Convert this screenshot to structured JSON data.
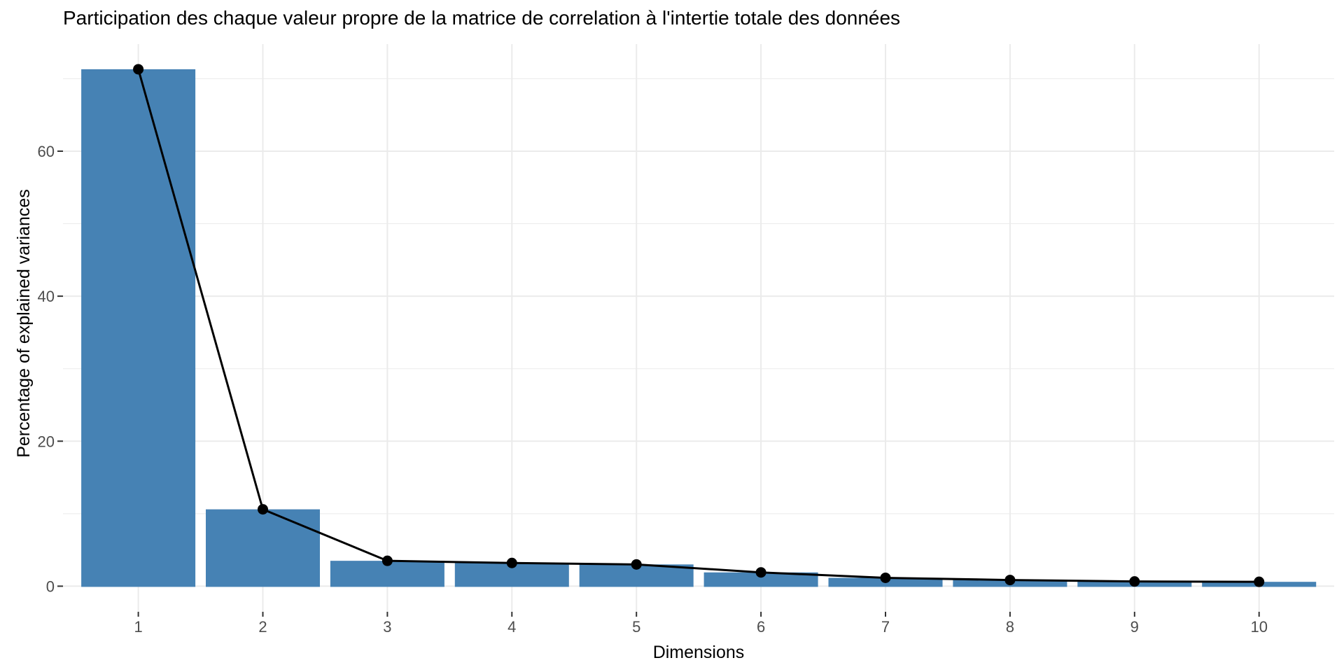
{
  "chart_data": {
    "type": "bar",
    "overlay": "line-with-points",
    "title": "Participation des chaque valeur propre de la matrice de correlation à l'intertie totale des données",
    "xlabel": "Dimensions",
    "ylabel": "Percentage of explained variances",
    "categories": [
      "1",
      "2",
      "3",
      "4",
      "5",
      "6",
      "7",
      "8",
      "9",
      "10"
    ],
    "values": [
      71.3,
      10.6,
      3.5,
      3.2,
      3.0,
      1.9,
      1.15,
      0.85,
      0.65,
      0.6
    ],
    "yticks": [
      0,
      20,
      40,
      60
    ],
    "y_minor_gridlines": [
      10,
      30,
      50,
      70
    ],
    "ylim": [
      0,
      74.8
    ],
    "grid": true,
    "legend_position": "none",
    "colors": {
      "bar_fill": "#4682B4",
      "line": "#000000",
      "point": "#000000",
      "gridline": "#EBEBEB",
      "tick_mark": "#333333",
      "tick_text": "#4D4D4D",
      "title_text": "#000000",
      "background": "#FFFFFF"
    }
  }
}
